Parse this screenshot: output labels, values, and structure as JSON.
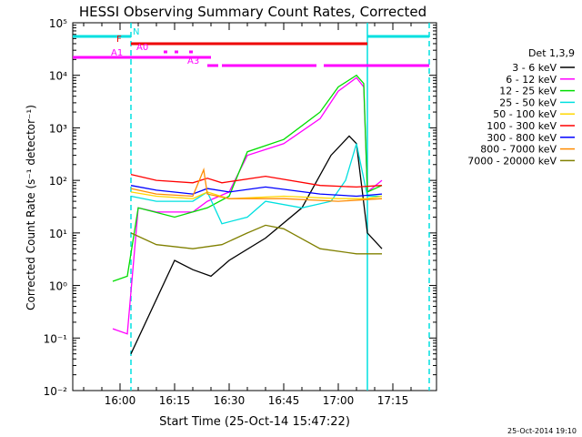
{
  "chart_data": {
    "type": "line",
    "title": "HESSI Observing Summary Count Rates, Corrected",
    "xlabel": "Start Time (25-Oct-14 15:47:22)",
    "ylabel": "Corrected Count Rate (s⁻¹ detector⁻¹)",
    "footer": "25-Oct-2014 19:10",
    "y_scale": "log",
    "xlim": [
      "15:47",
      "17:27"
    ],
    "ylim": [
      0.01,
      100000
    ],
    "x_ticks": [
      "16:00",
      "16:15",
      "16:30",
      "16:45",
      "17:00",
      "17:15"
    ],
    "y_ticks": [
      "10⁻²",
      "10⁻¹",
      "10⁰",
      "10¹",
      "10²",
      "10³",
      "10⁴",
      "10⁵"
    ],
    "legend_title": "Det 1,3,9",
    "legend_position": "right",
    "series": [
      {
        "name": "3 - 6 keV",
        "color": "#000000",
        "x": [
          "16:03",
          "16:15",
          "16:20",
          "16:25",
          "16:30",
          "16:40",
          "16:50",
          "16:58",
          "17:03",
          "17:05",
          "17:08",
          "17:12"
        ],
        "y": [
          0.05,
          3,
          2,
          1.5,
          3,
          8,
          30,
          300,
          700,
          500,
          10,
          5
        ]
      },
      {
        "name": "6 - 12 keV",
        "color": "#ff00ff",
        "x": [
          "15:58",
          "16:02",
          "16:05",
          "16:10",
          "16:20",
          "16:24",
          "16:30",
          "16:35",
          "16:45",
          "16:55",
          "17:00",
          "17:05",
          "17:07",
          "17:08",
          "17:12"
        ],
        "y": [
          0.15,
          0.12,
          30,
          25,
          25,
          40,
          60,
          300,
          500,
          1500,
          5000,
          9000,
          6000,
          60,
          100
        ]
      },
      {
        "name": "12 - 25 keV",
        "color": "#00dd00",
        "x": [
          "15:58",
          "16:02",
          "16:05",
          "16:15",
          "16:24",
          "16:30",
          "16:35",
          "16:45",
          "16:55",
          "17:00",
          "17:05",
          "17:07",
          "17:08",
          "17:12"
        ],
        "y": [
          1.2,
          1.5,
          30,
          20,
          30,
          50,
          350,
          600,
          2000,
          6000,
          10000,
          7000,
          60,
          80
        ]
      },
      {
        "name": "25 - 50 keV",
        "color": "#00e0e0",
        "x": [
          "16:03",
          "16:10",
          "16:20",
          "16:24",
          "16:28",
          "16:35",
          "16:40",
          "16:50",
          "16:58",
          "17:02",
          "17:05",
          "17:08",
          "17:12"
        ],
        "y": [
          50,
          40,
          40,
          60,
          15,
          20,
          40,
          30,
          40,
          100,
          500,
          50,
          50
        ]
      },
      {
        "name": "50 - 100 keV",
        "color": "#ffd700",
        "x": [
          "16:03",
          "16:10",
          "16:20",
          "16:24",
          "16:30",
          "16:45",
          "17:00",
          "17:08",
          "17:12"
        ],
        "y": [
          60,
          50,
          45,
          60,
          45,
          50,
          45,
          45,
          50
        ]
      },
      {
        "name": "100 - 300 keV",
        "color": "#ff0000",
        "x": [
          "16:03",
          "16:10",
          "16:20",
          "16:24",
          "16:28",
          "16:40",
          "16:55",
          "17:05",
          "17:12"
        ],
        "y": [
          130,
          100,
          90,
          110,
          90,
          120,
          80,
          75,
          80
        ]
      },
      {
        "name": "300 - 800 keV",
        "color": "#0000ff",
        "x": [
          "16:03",
          "16:10",
          "16:20",
          "16:24",
          "16:30",
          "16:40",
          "16:55",
          "17:05",
          "17:12"
        ],
        "y": [
          80,
          65,
          55,
          70,
          60,
          75,
          55,
          50,
          55
        ]
      },
      {
        "name": "800 - 7000 keV",
        "color": "#ff8c00",
        "x": [
          "16:03",
          "16:10",
          "16:20",
          "16:23",
          "16:24",
          "16:30",
          "16:45",
          "17:00",
          "17:12"
        ],
        "y": [
          70,
          55,
          50,
          160,
          55,
          45,
          45,
          40,
          45
        ]
      },
      {
        "name": "7000 - 20000 keV",
        "color": "#808000",
        "x": [
          "16:03",
          "16:10",
          "16:20",
          "16:28",
          "16:35",
          "16:40",
          "16:45",
          "16:55",
          "17:05",
          "17:12"
        ],
        "y": [
          10,
          6,
          5,
          6,
          10,
          14,
          12,
          5,
          4,
          4
        ]
      }
    ],
    "flag_bars": [
      {
        "label": "N",
        "color": "#00e0e0",
        "segments": [
          [
            "15:47",
            "16:03"
          ],
          [
            "17:08",
            "17:25"
          ]
        ]
      },
      {
        "label": "F",
        "color": "#ee0000",
        "segments": [
          [
            "16:03",
            "17:08"
          ]
        ]
      },
      {
        "label": "A0",
        "color": "#ff00ff",
        "segments": [
          [
            "16:12",
            "16:13"
          ],
          [
            "16:15",
            "16:16"
          ],
          [
            "16:19",
            "16:20"
          ]
        ]
      },
      {
        "label": "A1",
        "color": "#ff00ff",
        "segments": [
          [
            "15:47",
            "16:03"
          ],
          [
            "16:03",
            "16:25"
          ]
        ]
      },
      {
        "label": "A3",
        "color": "#ff00ff",
        "segments": [
          [
            "16:24",
            "16:27"
          ],
          [
            "16:28",
            "16:54"
          ],
          [
            "16:56",
            "17:25"
          ]
        ]
      }
    ],
    "vertical_lines": [
      {
        "x": "16:03",
        "color": "#00e0e0",
        "style": "dashed"
      },
      {
        "x": "17:08",
        "color": "#00e0e0",
        "style": "solid"
      },
      {
        "x": "17:25",
        "color": "#00e0e0",
        "style": "dashed"
      }
    ]
  }
}
